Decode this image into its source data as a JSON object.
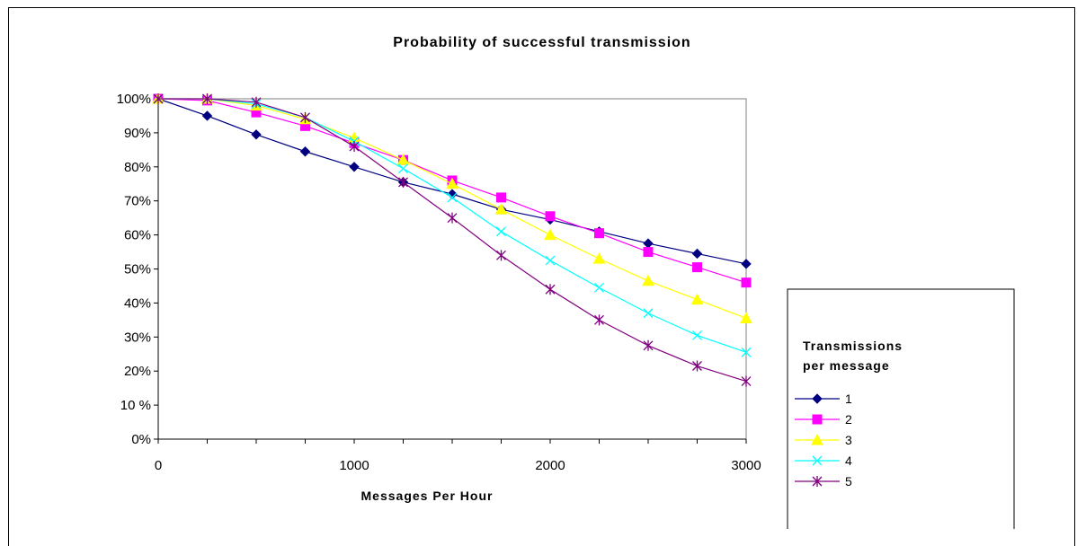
{
  "chart_data": {
    "type": "line",
    "title": "Probability of successful transmission",
    "xlabel": "Messages Per Hour",
    "ylabel": "",
    "xlim": [
      0,
      3000
    ],
    "ylim": [
      0,
      100
    ],
    "x_ticks": [
      "0",
      "1000",
      "2000",
      "3000"
    ],
    "y_ticks": [
      "0%",
      "10 %",
      "20%",
      "30%",
      "40%",
      "50%",
      "60%",
      "70%",
      "80%",
      "90%",
      "100%"
    ],
    "legend_title": "Transmissions per message",
    "legend_title_lines": [
      "Transmissions",
      "per message"
    ],
    "legend_position": "right",
    "grid": false,
    "x": [
      0,
      250,
      500,
      750,
      1000,
      1250,
      1500,
      1750,
      2000,
      2250,
      2500,
      2750,
      3000
    ],
    "series": [
      {
        "name": "1",
        "color": "#000080",
        "marker": "diamond",
        "values": [
          100,
          95,
          89.5,
          84.5,
          80,
          75.5,
          72,
          67.5,
          64.5,
          61,
          57.5,
          54.5,
          51.5
        ]
      },
      {
        "name": "2",
        "color": "#ff00ff",
        "marker": "square",
        "values": [
          100,
          99.5,
          96,
          92,
          87,
          82,
          76,
          71,
          65.5,
          60.5,
          55,
          50.5,
          46
        ]
      },
      {
        "name": "3",
        "color": "#ffff00",
        "marker": "triangle",
        "values": [
          100,
          100,
          98,
          94,
          88.5,
          82,
          75,
          67.5,
          60,
          53,
          46.5,
          41,
          35.5
        ]
      },
      {
        "name": "4",
        "color": "#00ffff",
        "marker": "x",
        "values": [
          100,
          100,
          98.5,
          94.5,
          87.5,
          79.5,
          71,
          61,
          52.5,
          44.5,
          37,
          30.5,
          25.5
        ]
      },
      {
        "name": "5",
        "color": "#800080",
        "marker": "star",
        "values": [
          100,
          100,
          99,
          94.5,
          86,
          75.5,
          65,
          54,
          44,
          35,
          27.5,
          21.5,
          17
        ]
      }
    ]
  }
}
